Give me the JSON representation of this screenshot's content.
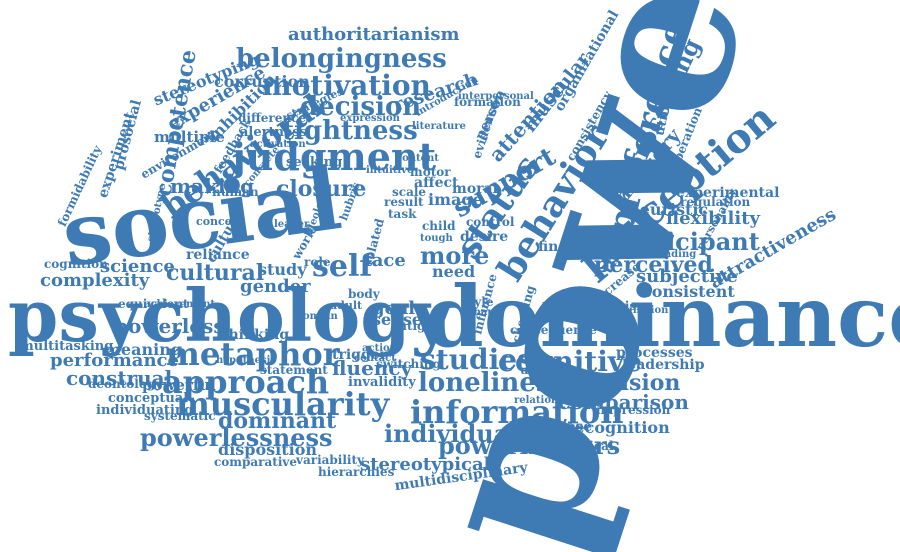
{
  "color": "#3e7ab3",
  "words": {
    "power": "power",
    "social": "social",
    "psychology": "psychology",
    "dominance": "dominance",
    "judgment": "judgment",
    "behavioral": "behavioral",
    "belongingness": "belongingness",
    "motivation": "motivation",
    "authoritarianism": "authoritarianism",
    "corruption": "corruption",
    "stereotyping": "stereotyping",
    "experience": "experience",
    "inhibition": "inhibition",
    "competence": "competence",
    "decision": "decision",
    "tightness": "tightness",
    "research": "research",
    "multiple": "multiple",
    "alertness": "alertness",
    "making": "making",
    "closure": "closure",
    "prosocial": "prosocial",
    "experiment": "experiment",
    "formidability": "formidability",
    "self": "self",
    "cultural": "cultural",
    "science": "science",
    "complexity": "complexity",
    "cognition": "cognition",
    "study": "study",
    "gender": "gender",
    "role": "role",
    "face": "face",
    "more": "more",
    "need": "need",
    "status": "status",
    "support": "support",
    "attention": "attention",
    "behavior": "behavior",
    "preference": "preference",
    "perception": "perception",
    "processing": "processing",
    "memory": "memory",
    "muscular": "muscular",
    "organizational": "organizational",
    "utilitarianism": "utilitarianism",
    "deliberation": "deliberation",
    "experimental": "experimental",
    "regulation": "regulation",
    "flexibility": "flexibility",
    "heuristic": "heuristic",
    "participant": "participant",
    "perceived": "perceived",
    "subjective": "subjective",
    "consistent": "consistent",
    "attractiveness": "attractiveness",
    "metaphor": "metaphor",
    "powerless": "powerless",
    "thinking": "thinking",
    "meaning": "meaning",
    "multitasking": "multitasking",
    "performance": "performance",
    "construal": "construal",
    "approach": "approach",
    "deontology": "deontology",
    "powerful": "powerful",
    "muscularity": "muscularity",
    "conceptual": "conceptual",
    "individuating": "individuating",
    "systematic": "systematic",
    "dominant": "dominant",
    "powerlessness": "powerlessness",
    "disposition": "disposition",
    "comparative": "comparative",
    "variability": "variability",
    "hierarchies": "hierarchies",
    "goal": "goal",
    "sense": "sense",
    "fatigue": "fatigue",
    "fluency": "fluency",
    "trigger": "trigger",
    "invalidity": "invalidity",
    "studies": "studies",
    "cognitive": "cognitive",
    "loneliness": "loneliness",
    "information": "information",
    "individual": "individual",
    "powerholders": "powerholders",
    "stereotypical": "stereotypical",
    "multidisciplinary": "multidisciplinary",
    "dimension": "dimension",
    "comparison": "comparison",
    "processes": "processes",
    "leadership": "leadership",
    "increase": "increase",
    "recognition": "recognition",
    "deontological": "deontological",
    "impression": "impression",
    "image": "image",
    "affect": "affect",
    "moral": "moral",
    "motor": "motor",
    "desire": "desire",
    "control": "control",
    "finding": "finding",
    "threat": "threat",
    "consequence": "consequence",
    "universal": "universal",
    "relationship": "relationship",
    "switching": "switching",
    "statement": "statement",
    "seeking": "seeking",
    "human": "human",
    "concept": "concept",
    "reliance": "reliance",
    "culture": "culture",
    "body": "body",
    "adult": "adult",
    "task": "task",
    "result": "result",
    "formation": "formation",
    "literature": "literature",
    "evidence": "evidence",
    "person": "person",
    "strategies": "strategies",
    "difference": "difference",
    "expression": "expression",
    "environment": "environment",
    "activation": "activation",
    "stereotype": "stereotype",
    "introduction": "introduction",
    "interpersonal": "interpersonal",
    "consistency": "consistency",
    "altruism": "altruism",
    "personality": "personality",
    "understanding": "understanding",
    "decrease": "decrease",
    "acquisition": "acquisition",
    "style": "style",
    "shape": "shape",
    "influence": "influence",
    "cheating": "cheating",
    "contact": "contact",
    "equivalent": "equivalent",
    "achievement": "achievement",
    "feedback": "feedback",
    "scale": "scale",
    "related": "related",
    "child": "child",
    "content": "content",
    "intuitive": "intuitive",
    "concrete": "concrete",
    "hubris": "hubris",
    "world": "world",
    "domain": "domain",
    "hypothesis": "hypothesis",
    "action": "action",
    "tough": "tough",
    "ideology": "ideology",
    "leader": "leader"
  }
}
